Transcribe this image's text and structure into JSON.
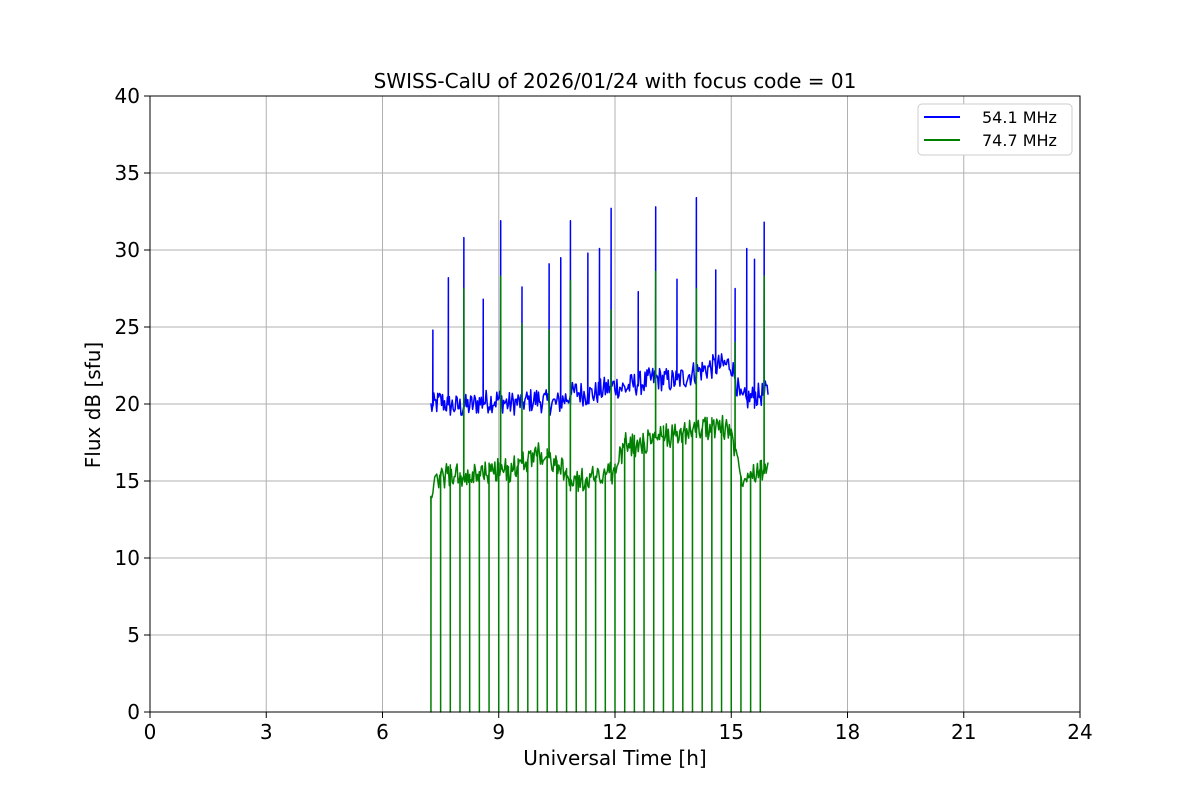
{
  "chart_data": {
    "type": "line",
    "title": "SWISS-CalU of 2026/01/24 with focus code = 01",
    "xlabel": "Universal Time [h]",
    "ylabel": "Flux dB [sfu]",
    "xlim": [
      0,
      24
    ],
    "ylim": [
      0,
      40
    ],
    "xticks": [
      0,
      3,
      6,
      9,
      12,
      15,
      18,
      21,
      24
    ],
    "yticks": [
      0,
      5,
      10,
      15,
      20,
      25,
      30,
      35,
      40
    ],
    "grid": true,
    "legend_position": "top-right",
    "x": [
      7.25,
      7.5,
      7.75,
      8.0,
      8.25,
      8.5,
      8.75,
      9.0,
      9.25,
      9.5,
      9.75,
      10.0,
      10.25,
      10.5,
      10.75,
      11.0,
      11.25,
      11.5,
      11.75,
      12.0,
      12.25,
      12.5,
      12.75,
      13.0,
      13.25,
      13.5,
      13.75,
      14.0,
      14.25,
      14.5,
      14.75,
      15.0,
      15.25,
      15.5,
      15.75,
      15.95
    ],
    "series": [
      {
        "name": "54.1 MHz",
        "color": "#0000ff",
        "values": [
          19.8,
          20.2,
          19.9,
          19.8,
          19.9,
          20.1,
          20.2,
          20.3,
          20.0,
          20.1,
          20.2,
          20.3,
          20.1,
          20.0,
          20.4,
          20.8,
          20.6,
          20.7,
          21.0,
          21.2,
          21.0,
          21.3,
          21.4,
          21.7,
          21.6,
          21.5,
          21.7,
          22.0,
          22.2,
          22.4,
          22.5,
          22.6,
          20.2,
          20.4,
          20.6,
          20.8
        ],
        "spikes": [
          {
            "x": 7.3,
            "y": 24.8
          },
          {
            "x": 7.7,
            "y": 28.2
          },
          {
            "x": 8.1,
            "y": 30.8
          },
          {
            "x": 8.6,
            "y": 26.8
          },
          {
            "x": 9.05,
            "y": 31.9
          },
          {
            "x": 9.6,
            "y": 27.6
          },
          {
            "x": 10.3,
            "y": 29.1
          },
          {
            "x": 10.6,
            "y": 29.5
          },
          {
            "x": 10.85,
            "y": 31.9
          },
          {
            "x": 11.3,
            "y": 29.8
          },
          {
            "x": 11.6,
            "y": 30.1
          },
          {
            "x": 11.9,
            "y": 32.7
          },
          {
            "x": 12.6,
            "y": 27.3
          },
          {
            "x": 13.05,
            "y": 32.8
          },
          {
            "x": 13.6,
            "y": 28.1
          },
          {
            "x": 14.1,
            "y": 33.4
          },
          {
            "x": 14.6,
            "y": 28.7
          },
          {
            "x": 15.1,
            "y": 27.5
          },
          {
            "x": 15.4,
            "y": 30.1
          },
          {
            "x": 15.6,
            "y": 29.4
          },
          {
            "x": 15.85,
            "y": 31.8
          }
        ]
      },
      {
        "name": "74.7 MHz",
        "color": "#008000",
        "values": [
          14.0,
          15.3,
          15.4,
          15.3,
          15.0,
          15.6,
          15.5,
          15.8,
          15.6,
          16.0,
          16.4,
          16.9,
          16.6,
          16.2,
          15.2,
          15.0,
          15.1,
          15.3,
          15.5,
          15.6,
          17.4,
          17.3,
          17.5,
          17.8,
          17.9,
          18.0,
          18.1,
          18.3,
          18.4,
          18.5,
          18.5,
          18.3,
          15.3,
          15.6,
          15.8,
          15.8
        ],
        "spikes": [
          {
            "x": 8.1,
            "y": 27.5
          },
          {
            "x": 9.05,
            "y": 28.3
          },
          {
            "x": 9.6,
            "y": 25.2
          },
          {
            "x": 10.3,
            "y": 24.8
          },
          {
            "x": 10.85,
            "y": 28.0
          },
          {
            "x": 11.9,
            "y": 26.1
          },
          {
            "x": 13.05,
            "y": 28.6
          },
          {
            "x": 14.1,
            "y": 27.5
          },
          {
            "x": 15.1,
            "y": 24.0
          },
          {
            "x": 15.85,
            "y": 28.3
          }
        ],
        "dropouts_to_zero": true
      }
    ]
  },
  "legend": {
    "entries": [
      "54.1 MHz",
      "74.7 MHz"
    ]
  }
}
